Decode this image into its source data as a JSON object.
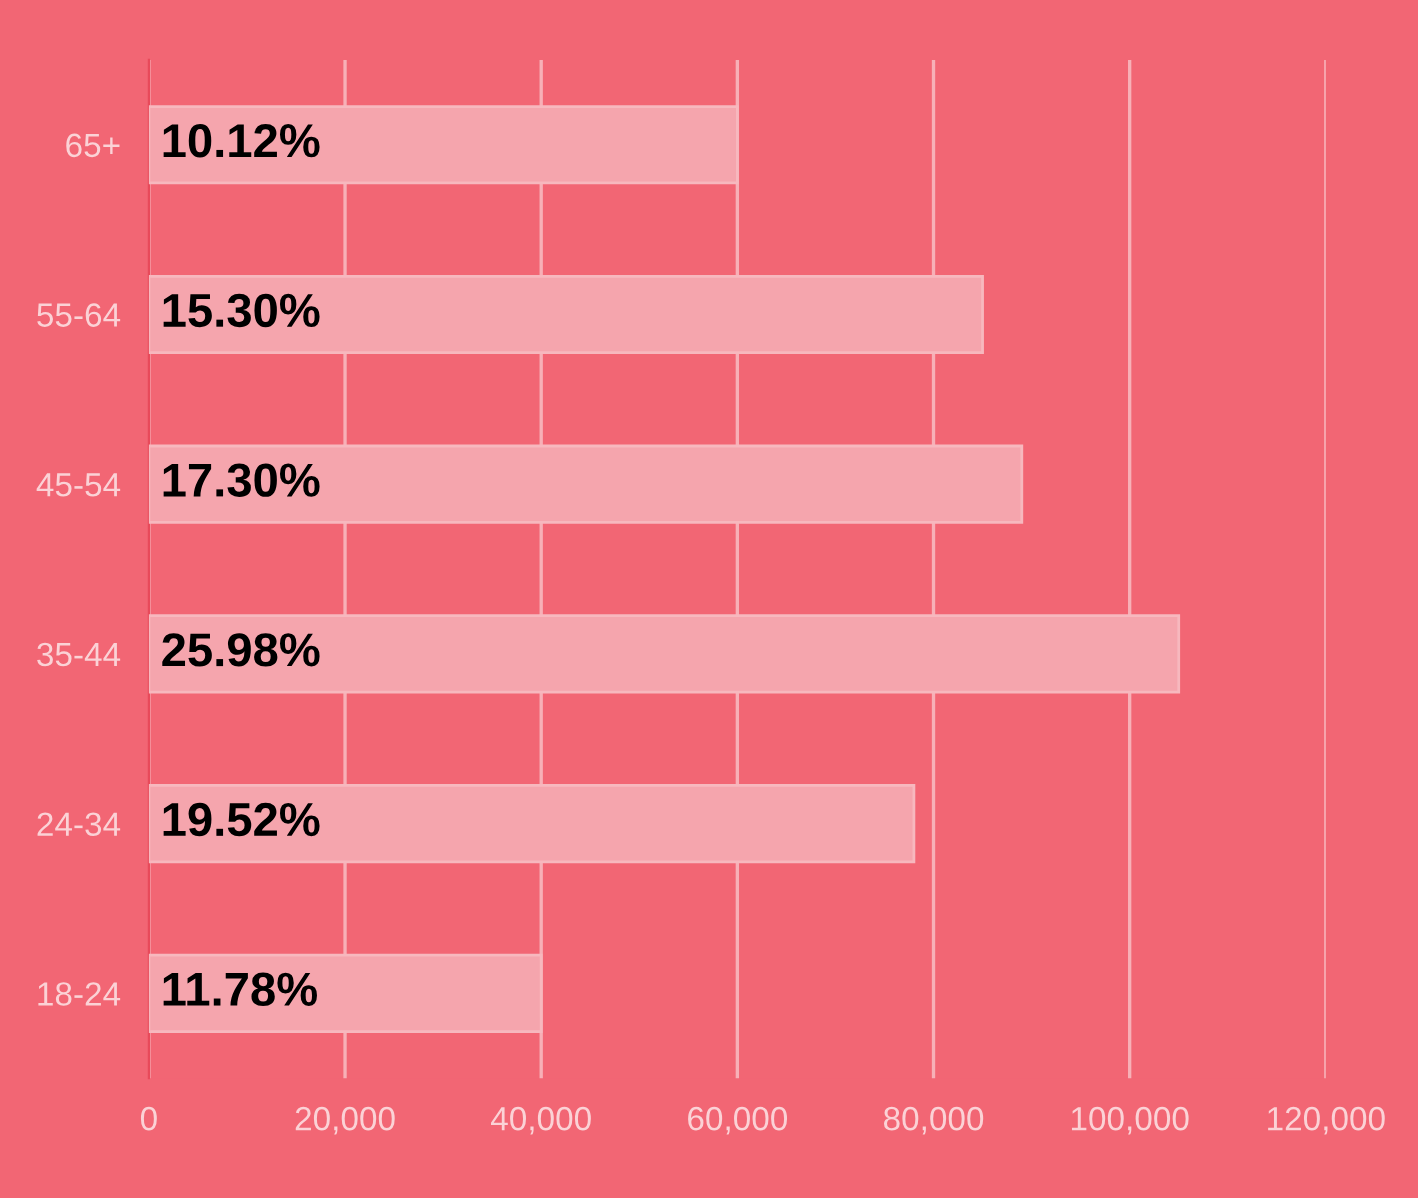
{
  "chart_data": {
    "type": "bar",
    "orientation": "horizontal",
    "categories": [
      "65+",
      "55-64",
      "45-54",
      "35-44",
      "24-34",
      "18-24"
    ],
    "values": [
      60000,
      85000,
      89000,
      105000,
      78000,
      40000
    ],
    "annotations": [
      "10.12%",
      "15.30%",
      "17.30%",
      "25.98%",
      "19.52%",
      "11.78%"
    ],
    "color": "#f5a5ad",
    "xlim": [
      0,
      120000
    ],
    "xticks": [
      {
        "value": 0,
        "label": "0"
      },
      {
        "value": 20000,
        "label": "20,000"
      },
      {
        "value": 40000,
        "label": "40,000"
      },
      {
        "value": 60000,
        "label": "60,000"
      },
      {
        "value": 80000,
        "label": "80,000"
      },
      {
        "value": 100000,
        "label": "100,000"
      },
      {
        "value": 120000,
        "label": "120,000"
      }
    ],
    "grid": "x"
  }
}
